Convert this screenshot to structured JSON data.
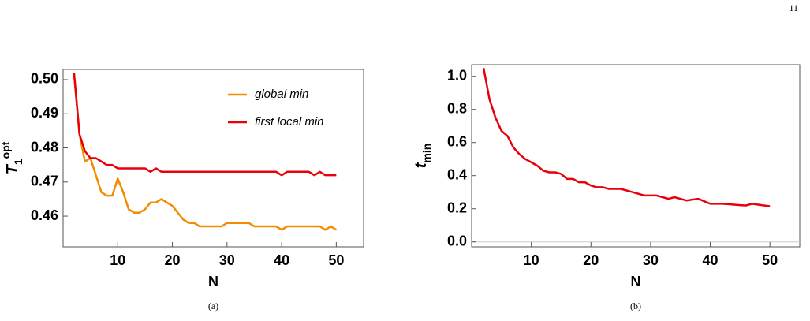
{
  "page_number": "11",
  "chart_data": [
    {
      "type": "line",
      "caption": "(a)",
      "xlabel": "N",
      "ylabel": {
        "main": "T",
        "sub": "1",
        "sup": "opt"
      },
      "x": [
        2,
        3,
        4,
        5,
        6,
        7,
        8,
        9,
        10,
        11,
        12,
        13,
        14,
        15,
        16,
        17,
        18,
        19,
        20,
        21,
        22,
        23,
        24,
        25,
        26,
        27,
        28,
        29,
        30,
        31,
        32,
        33,
        34,
        35,
        36,
        37,
        38,
        39,
        40,
        41,
        42,
        43,
        44,
        45,
        46,
        47,
        48,
        49,
        50
      ],
      "series": [
        {
          "name": "global min",
          "color": "#f28c00",
          "values": [
            0.502,
            0.484,
            0.476,
            0.477,
            0.472,
            0.467,
            0.466,
            0.466,
            0.471,
            0.467,
            0.462,
            0.461,
            0.461,
            0.462,
            0.464,
            0.464,
            0.465,
            0.464,
            0.463,
            0.461,
            0.459,
            0.458,
            0.458,
            0.457,
            0.457,
            0.457,
            0.457,
            0.457,
            0.458,
            0.458,
            0.458,
            0.458,
            0.458,
            0.457,
            0.457,
            0.457,
            0.457,
            0.457,
            0.456,
            0.457,
            0.457,
            0.457,
            0.457,
            0.457,
            0.457,
            0.457,
            0.456,
            0.457,
            0.456
          ]
        },
        {
          "name": "first local min",
          "color": "#e8000b",
          "values": [
            0.502,
            0.484,
            0.479,
            0.477,
            0.477,
            0.476,
            0.475,
            0.475,
            0.474,
            0.474,
            0.474,
            0.474,
            0.474,
            0.474,
            0.473,
            0.474,
            0.473,
            0.473,
            0.473,
            0.473,
            0.473,
            0.473,
            0.473,
            0.473,
            0.473,
            0.473,
            0.473,
            0.473,
            0.473,
            0.473,
            0.473,
            0.473,
            0.473,
            0.473,
            0.473,
            0.473,
            0.473,
            0.473,
            0.472,
            0.473,
            0.473,
            0.473,
            0.473,
            0.473,
            0.472,
            0.473,
            0.472,
            0.472,
            0.472
          ]
        }
      ],
      "xlim": [
        0,
        55
      ],
      "xticks": [
        10,
        20,
        30,
        40,
        50
      ],
      "ylim": [
        0.451,
        0.503
      ],
      "yticks": [
        0.46,
        0.47,
        0.48,
        0.49,
        {
          "value": 0.5,
          "label": "0.50"
        }
      ],
      "legend": "upper-right"
    },
    {
      "type": "line",
      "caption": "(b)",
      "xlabel": "N",
      "ylabel": {
        "main": "t",
        "sub": "min"
      },
      "x": [
        2,
        3,
        4,
        5,
        6,
        7,
        8,
        9,
        10,
        11,
        12,
        13,
        14,
        15,
        16,
        17,
        18,
        19,
        20,
        21,
        22,
        23,
        24,
        25,
        26,
        27,
        28,
        29,
        30,
        31,
        32,
        33,
        34,
        35,
        36,
        37,
        38,
        39,
        40,
        41,
        42,
        43,
        44,
        45,
        46,
        47,
        48,
        49,
        50
      ],
      "color": "#e8000b",
      "values": [
        1.05,
        0.86,
        0.75,
        0.67,
        0.64,
        0.57,
        0.53,
        0.5,
        0.48,
        0.46,
        0.43,
        0.42,
        0.42,
        0.41,
        0.38,
        0.38,
        0.36,
        0.36,
        0.34,
        0.33,
        0.33,
        0.32,
        0.32,
        0.32,
        0.31,
        0.3,
        0.29,
        0.28,
        0.28,
        0.28,
        0.27,
        0.26,
        0.27,
        0.26,
        0.25,
        0.255,
        0.26,
        0.245,
        0.23,
        0.23,
        0.23,
        0.228,
        0.225,
        0.222,
        0.22,
        0.23,
        0.225,
        0.22,
        0.215
      ],
      "xlim": [
        0,
        55
      ],
      "xticks": [
        10,
        20,
        30,
        40,
        50
      ],
      "ylim": [
        -0.03,
        1.07
      ],
      "yticks": [
        {
          "value": 0,
          "label": "0.0"
        },
        0.2,
        0.4,
        0.6,
        0.8,
        {
          "value": 1,
          "label": "1.0"
        }
      ],
      "zero_line": true
    }
  ]
}
